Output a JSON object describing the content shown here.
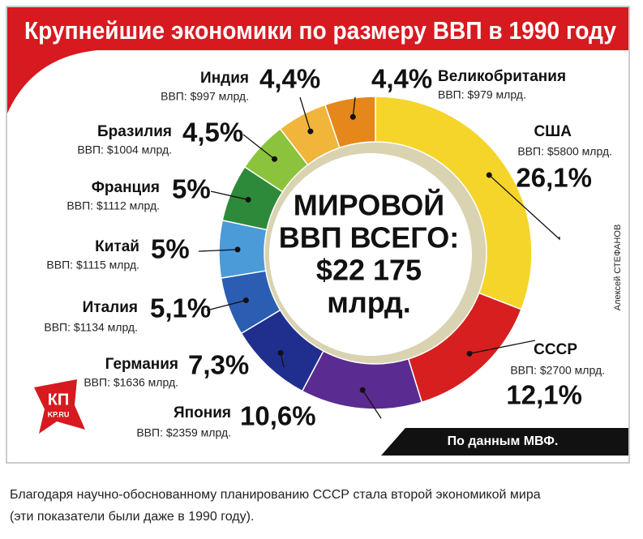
{
  "chart_data": {
    "type": "donut",
    "title": "Крупнейшие экономики по размеру ВВП в 1990 году",
    "categories": [
      "США",
      "СССР",
      "Япония",
      "Германия",
      "Италия",
      "Китай",
      "Франция",
      "Бразилия",
      "Индия",
      "Великобритания"
    ],
    "values": [
      26.1,
      12.1,
      10.6,
      7.3,
      5.1,
      5,
      5,
      4.5,
      4.4,
      4.4
    ],
    "value_labels": [
      "26,1%",
      "12,1%",
      "10,6%",
      "7,3%",
      "5,1%",
      "5%",
      "5%",
      "4,5%",
      "4,4%",
      "4,4%"
    ],
    "gdp_labels": [
      "ВВП: $5800 млрд.",
      "ВВП: $2700 млрд.",
      "ВВП: $2359 млрд.",
      "ВВП: $1636 млрд.",
      "ВВП: $1134 млрд.",
      "ВВП: $1115 млрд.",
      "ВВП: $1112 млрд.",
      "ВВП: $1004 млрд.",
      "ВВП: $997 млрд.",
      "ВВП: $979 млрд."
    ],
    "colors": [
      "#f6d52a",
      "#d71f1f",
      "#5a2b90",
      "#202f8d",
      "#2b5db2",
      "#4c9bd9",
      "#2d8a3b",
      "#8cc33d",
      "#f1b53b",
      "#e5871b"
    ],
    "center_text": [
      "МИРОВОЙ",
      "ВВП ВСЕГО:",
      "$22 175",
      "млрд."
    ],
    "source": "По данным МВФ.",
    "author": "Алексей СТЕФАНОВ"
  },
  "logo": {
    "text": "КП",
    "site": "KP.RU"
  },
  "caption": [
    "Благодаря научно-обоснованному планированию СССР стала второй экономикой мира",
    "(эти показатели были даже в 1990 году)."
  ]
}
